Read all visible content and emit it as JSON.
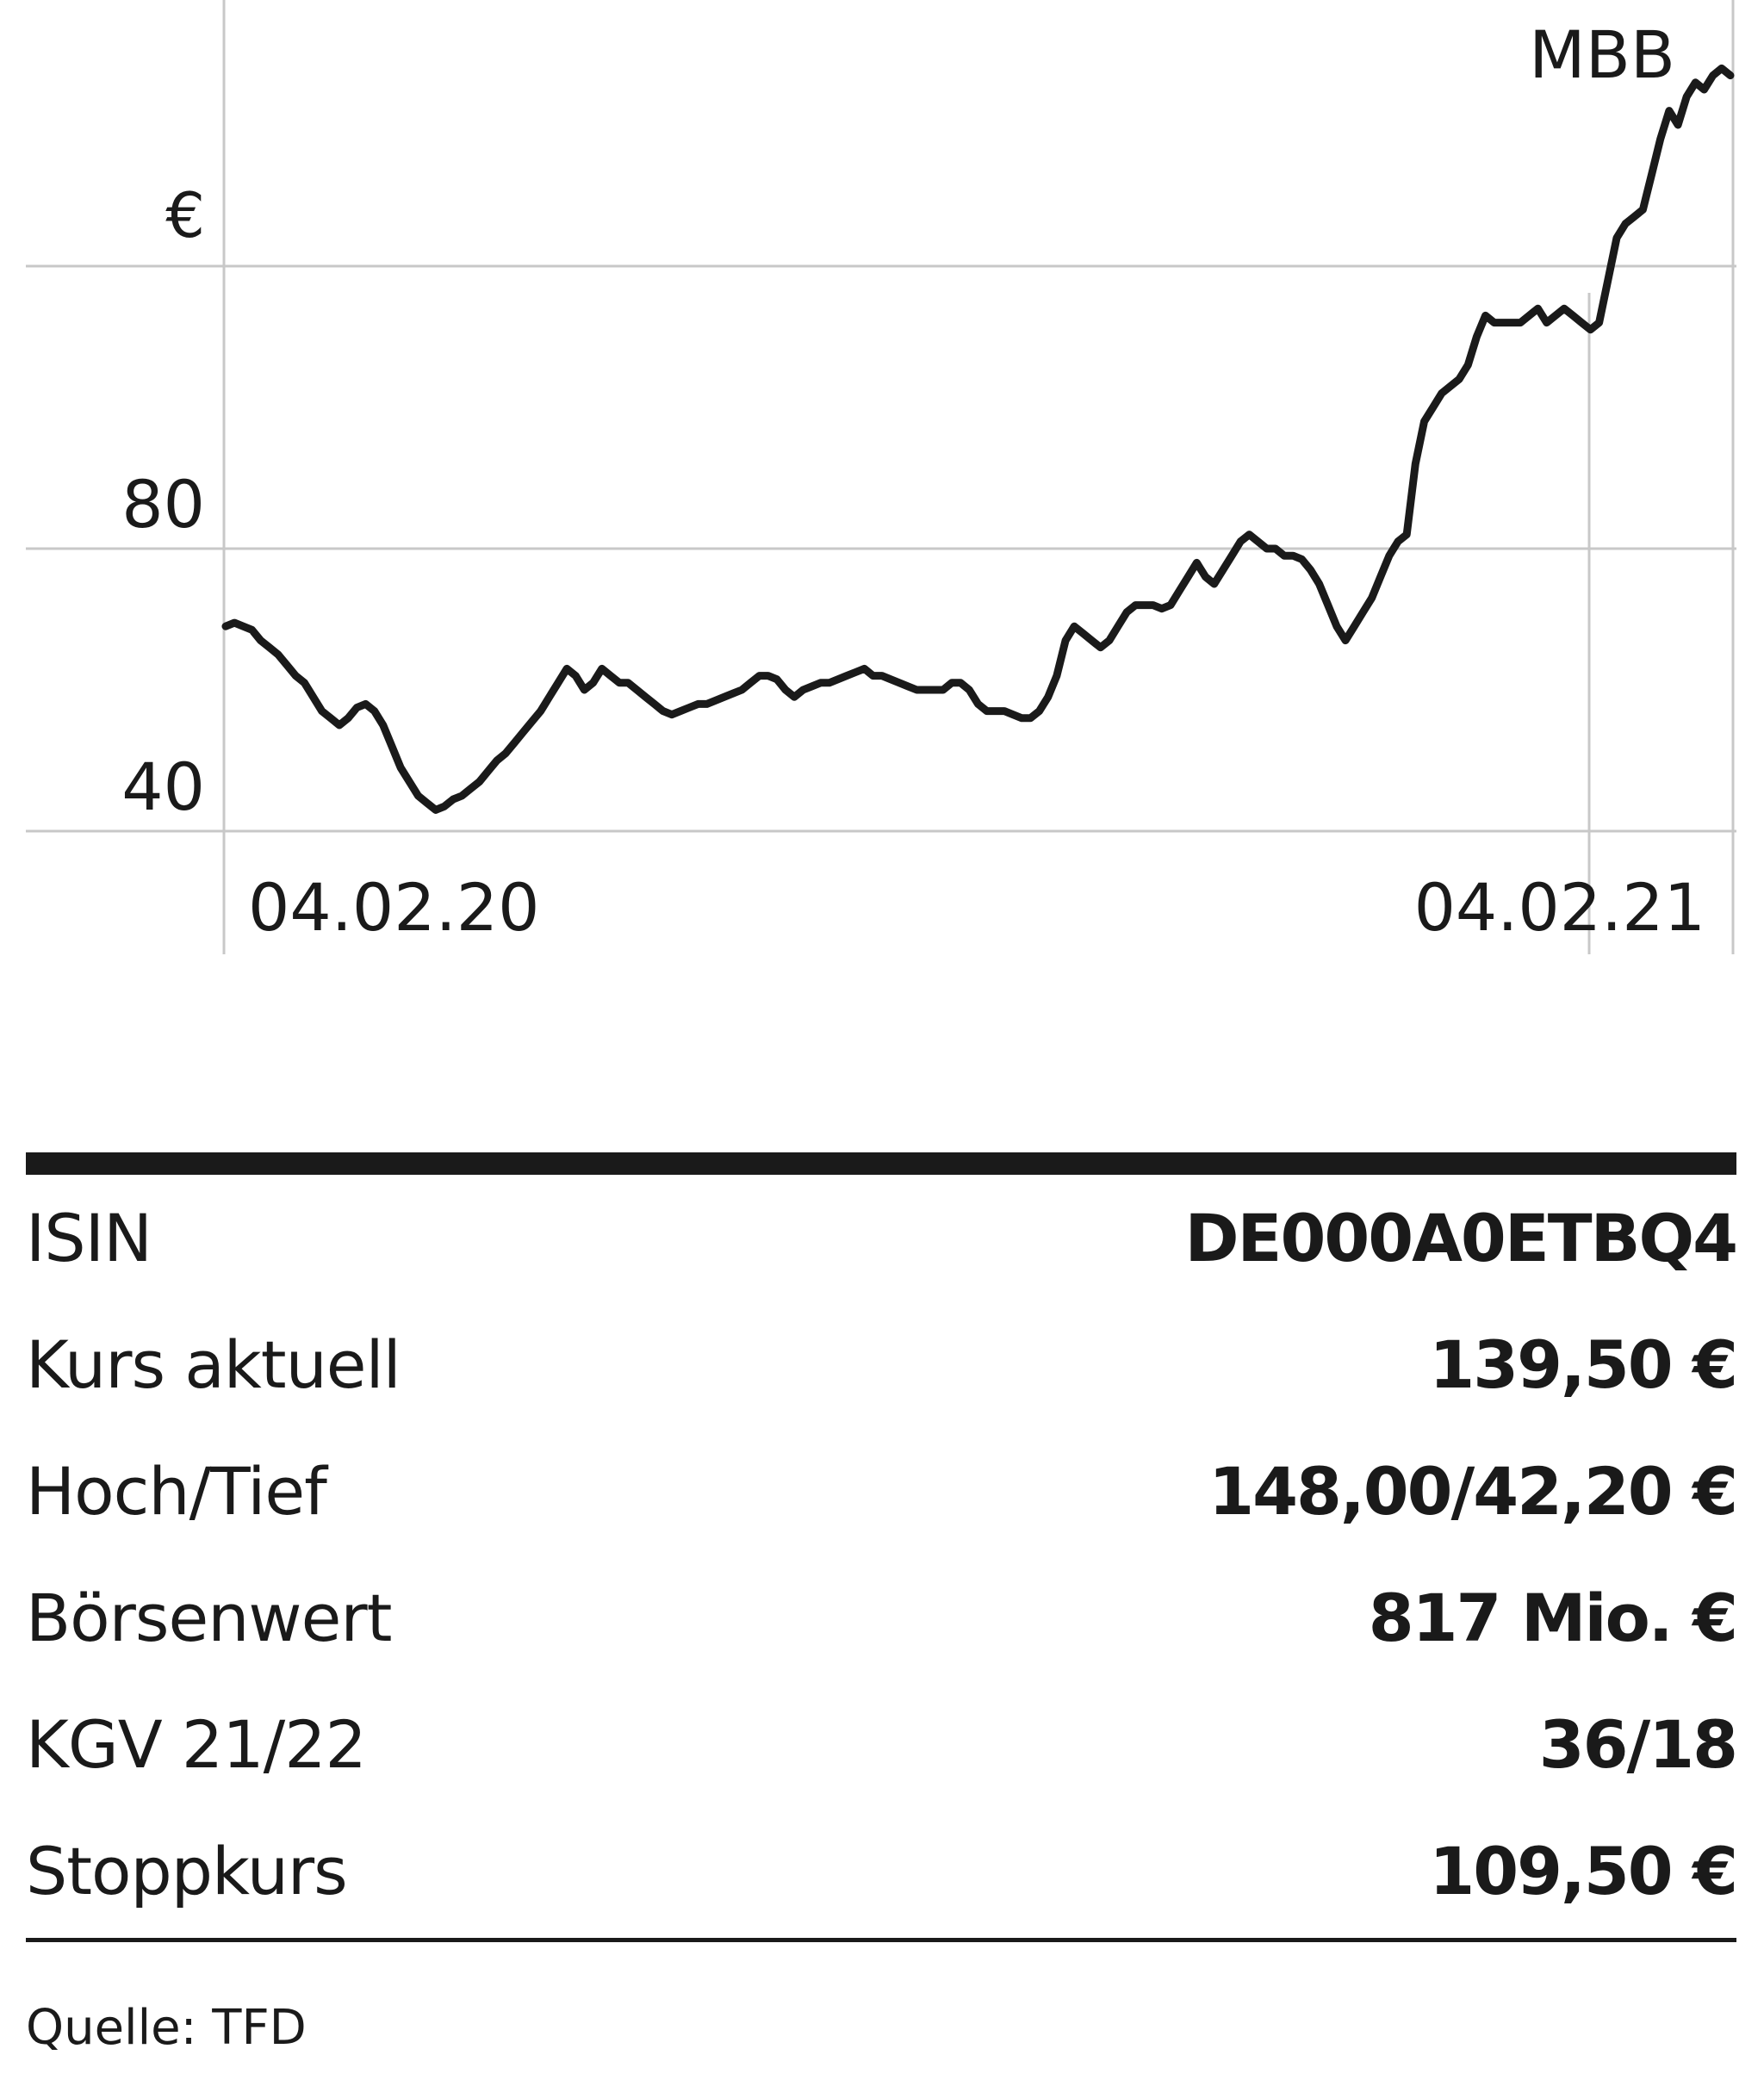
{
  "chart_data": {
    "type": "line",
    "title": "MBB",
    "ylabel": "€",
    "ylim": [
      40,
      160
    ],
    "yticks": [
      40,
      80
    ],
    "xlabels": [
      "04.02.20",
      "04.02.21"
    ],
    "grid": true,
    "series": [
      {
        "values": [
          69,
          69.5,
          69,
          68.5,
          67,
          66,
          65,
          63.5,
          62,
          61,
          59,
          57,
          56,
          55,
          56,
          57.5,
          58,
          57,
          55,
          52,
          49,
          47,
          45,
          44,
          43,
          43.5,
          44.5,
          45,
          46,
          47,
          48.5,
          50,
          51,
          52.5,
          54,
          55.5,
          57,
          59,
          61,
          63,
          62,
          60,
          61,
          63,
          62,
          61,
          61,
          60,
          59,
          58,
          57,
          56.5,
          57,
          57.5,
          58,
          58,
          58.5,
          59,
          59.5,
          60,
          61,
          62,
          62,
          61.5,
          60,
          59,
          60,
          60.5,
          61,
          61,
          61.5,
          62,
          62.5,
          63,
          62,
          62,
          61.5,
          61,
          60.5,
          60,
          60,
          60,
          60,
          61,
          61,
          60,
          58,
          57,
          57,
          57,
          56.5,
          56,
          56,
          57,
          59,
          62,
          67,
          69,
          68,
          67,
          66,
          67,
          69,
          71,
          72,
          72,
          72,
          71.5,
          72,
          74,
          76,
          78,
          76,
          75,
          77,
          79,
          81,
          82,
          81,
          80,
          80,
          79,
          79,
          78.5,
          77,
          75,
          72,
          69,
          67,
          69,
          71,
          73,
          76,
          79,
          81,
          82,
          92,
          98,
          100,
          102,
          103,
          104,
          106,
          110,
          113,
          112,
          112,
          112,
          112,
          113,
          114,
          112,
          113,
          114,
          113,
          112,
          111,
          112,
          118,
          124,
          126,
          127,
          128,
          133,
          138,
          142,
          140,
          144,
          146,
          145,
          147,
          148,
          147
        ]
      }
    ]
  },
  "facts": {
    "rows": [
      {
        "label": "ISIN",
        "value": "DE000A0ETBQ4"
      },
      {
        "label": "Kurs aktuell",
        "value": "139,50 €"
      },
      {
        "label": "Hoch/Tief",
        "value": "148,00/42,20 €"
      },
      {
        "label": "Börsenwert",
        "value": "817 Mio. €"
      },
      {
        "label": "KGV 21/22",
        "value": "36/18"
      },
      {
        "label": "Stoppkurs",
        "value": "109,50 €"
      }
    ]
  },
  "source": "Quelle: TFD",
  "colors": {
    "ink": "#1a1a1a",
    "grid": "#c8c8c8"
  }
}
